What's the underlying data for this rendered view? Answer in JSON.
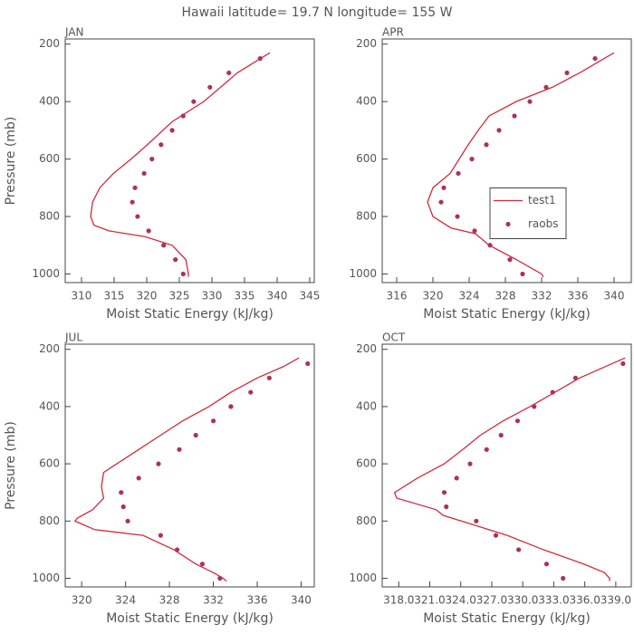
{
  "title": "Hawaii  latitude= 19.7 N longitude= 155 W",
  "chart_data": [
    {
      "type": "line",
      "title": "JAN",
      "xlabel": "Moist Static Energy (kJ/kg)",
      "ylabel": "Pressure (mb)",
      "xlim": [
        307.5,
        345.7
      ],
      "xticks": [
        310,
        315,
        320,
        325,
        330,
        335,
        340,
        345
      ],
      "ylim": [
        1030,
        182
      ],
      "yticks": [
        200,
        400,
        600,
        800,
        1000
      ],
      "series": [
        {
          "type": "line",
          "color": "#d42a3a",
          "x": [
            338.9,
            333.9,
            328.75,
            323.9,
            320.1,
            317.6,
            314.9,
            312.8,
            311.7,
            311.4,
            311.9,
            314.2,
            319.7,
            323.9,
            326.0,
            326.4,
            326.4
          ],
          "y": [
            230,
            300,
            400,
            470,
            550,
            600,
            650,
            700,
            750,
            800,
            830,
            850,
            870,
            900,
            950,
            1000,
            1010
          ]
        },
        {
          "type": "scatter",
          "color": "#b0305a",
          "x": [
            337.4,
            332.6,
            329.7,
            327.2,
            325.6,
            323.9,
            322.2,
            320.8,
            319.6,
            318.2,
            317.8,
            318.6,
            320.3,
            322.6,
            324.4,
            325.6
          ],
          "y": [
            250,
            300,
            350,
            400,
            450,
            500,
            550,
            600,
            650,
            700,
            750,
            800,
            850,
            900,
            950,
            1000
          ]
        }
      ]
    },
    {
      "type": "line",
      "title": "APR",
      "xlabel": "Moist Static Energy (kJ/kg)",
      "xlim": [
        314.4,
        341.9
      ],
      "xticks": [
        316,
        320,
        324,
        328,
        332,
        336,
        340
      ],
      "ylim": [
        1030,
        182
      ],
      "yticks": [
        200,
        400,
        600,
        800,
        1000
      ],
      "legend": "right",
      "series": [
        {
          "name": "test1",
          "type": "line",
          "color": "#d42a3a",
          "x": [
            340.0,
            336.2,
            333.2,
            329.2,
            326.2,
            325.0,
            323.9,
            322.9,
            321.9,
            320.0,
            319.4,
            320.0,
            322.0,
            324.7,
            326.2,
            329.2,
            332.0,
            332.2
          ],
          "y": [
            230,
            300,
            350,
            400,
            450,
            500,
            550,
            600,
            650,
            700,
            750,
            800,
            840,
            860,
            900,
            950,
            1000,
            1010
          ]
        },
        {
          "name": "raobs",
          "type": "scatter",
          "color": "#b0305a",
          "x": [
            337.9,
            334.8,
            332.5,
            330.7,
            329.0,
            327.3,
            325.9,
            324.3,
            322.8,
            321.2,
            320.9,
            322.7,
            324.6,
            326.3,
            328.5,
            329.9
          ],
          "y": [
            250,
            300,
            350,
            400,
            450,
            500,
            550,
            600,
            650,
            700,
            750,
            800,
            850,
            900,
            950,
            1000
          ]
        }
      ]
    },
    {
      "type": "line",
      "title": "JUL",
      "xlabel": "Moist Static Energy (kJ/kg)",
      "ylabel": "Pressure (mb)",
      "xlim": [
        318.5,
        341.2
      ],
      "xticks": [
        320,
        324,
        328,
        332,
        336,
        340
      ],
      "ylim": [
        1030,
        182
      ],
      "yticks": [
        200,
        400,
        600,
        800,
        1000
      ],
      "series": [
        {
          "type": "line",
          "color": "#d42a3a",
          "x": [
            339.8,
            338.4,
            336.0,
            333.6,
            331.6,
            329.2,
            327.2,
            325.2,
            323.2,
            322.0,
            321.8,
            322.0,
            321.0,
            319.6,
            319.4,
            320.0,
            321.2,
            325.6,
            328.4,
            330.4,
            332.0,
            332.9,
            333.2
          ],
          "y": [
            230,
            260,
            300,
            350,
            400,
            450,
            500,
            550,
            600,
            630,
            680,
            720,
            760,
            790,
            800,
            810,
            830,
            850,
            900,
            950,
            980,
            1000,
            1010
          ]
        },
        {
          "type": "scatter",
          "color": "#b0305a",
          "x": [
            340.6,
            337.1,
            335.4,
            333.6,
            332.0,
            330.4,
            328.9,
            327.0,
            325.2,
            323.6,
            323.8,
            324.2,
            327.2,
            328.7,
            331.0,
            332.6
          ],
          "y": [
            250,
            300,
            350,
            400,
            450,
            500,
            550,
            600,
            650,
            700,
            750,
            800,
            850,
            900,
            950,
            1000
          ]
        }
      ]
    },
    {
      "type": "line",
      "title": "OCT",
      "xlabel": "Moist Static Energy (kJ/kg)",
      "xlim": [
        316.4,
        340.5
      ],
      "xticks": [
        {
          "value": 318,
          "label": "318.0"
        },
        {
          "value": 321,
          "label": "321.0"
        },
        {
          "value": 324,
          "label": "324.0"
        },
        {
          "value": 327,
          "label": "327.0"
        },
        {
          "value": 330,
          "label": "330.0"
        },
        {
          "value": 333,
          "label": "333.0"
        },
        {
          "value": 336,
          "label": "336.0"
        },
        {
          "value": 339,
          "label": "339.0"
        }
      ],
      "ylim": [
        1030,
        182
      ],
      "yticks": [
        200,
        400,
        600,
        800,
        1000
      ],
      "series": [
        {
          "type": "line",
          "color": "#d42a3a",
          "x": [
            339.9,
            335.5,
            330.7,
            328.1,
            325.9,
            324.2,
            322.4,
            319.8,
            317.6,
            317.8,
            321.6,
            322.3,
            328.5,
            332.0,
            335.9,
            337.9,
            338.4,
            338.4
          ],
          "y": [
            230,
            300,
            400,
            450,
            500,
            550,
            600,
            650,
            700,
            720,
            760,
            780,
            850,
            900,
            950,
            980,
            1000,
            1010
          ]
        },
        {
          "type": "scatter",
          "color": "#b0305a",
          "x": [
            339.7,
            335.1,
            332.9,
            331.1,
            329.5,
            327.9,
            326.5,
            324.9,
            323.6,
            322.4,
            322.6,
            325.5,
            327.4,
            329.6,
            332.3,
            333.9
          ],
          "y": [
            250,
            300,
            350,
            400,
            450,
            500,
            550,
            600,
            650,
            700,
            750,
            800,
            850,
            900,
            950,
            1000
          ]
        }
      ]
    }
  ]
}
